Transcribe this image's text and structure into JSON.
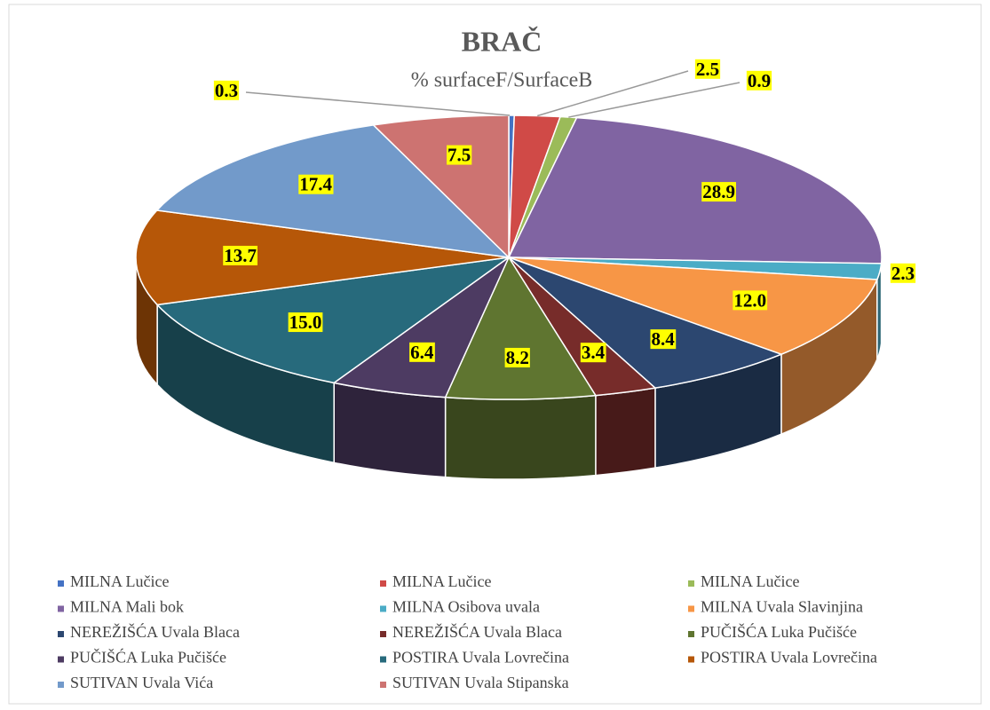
{
  "chart_data": {
    "type": "pie",
    "title": "BRAČ",
    "subtitle": "% surfaceF/SurfaceB",
    "categories": [
      "MILNA Lučice",
      "MILNA Lučice",
      "MILNA Lučice",
      "MILNA Mali bok",
      "MILNA Osibova uvala",
      "MILNA Uvala Slavinjina",
      "NEREŽIŠĆA Uvala Blaca",
      "NEREŽIŠĆA Uvala Blaca",
      "PUČIŠĆA Luka Pučišće",
      "PUČIŠĆA Luka Pučišće",
      "POSTIRA Uvala Lovrečina",
      "POSTIRA Uvala Lovrečina",
      "SUTIVAN Uvala Vića",
      "SUTIVAN Uvala Stipanska"
    ],
    "values": [
      0.3,
      2.5,
      0.9,
      28.9,
      2.3,
      12.0,
      8.4,
      3.4,
      8.2,
      6.4,
      15.0,
      13.7,
      17.4,
      7.5
    ],
    "value_labels": [
      "0.3",
      "2.5",
      "0.9",
      "28.9",
      "2.3",
      "12.0",
      "8.4",
      "3.4",
      "8.2",
      "6.4",
      "15.0",
      "13.7",
      "17.4",
      "7.5"
    ],
    "colors": [
      "#4472c4",
      "#d04a47",
      "#9bbb59",
      "#8064a2",
      "#4bacc6",
      "#f79646",
      "#2c4770",
      "#772c2a",
      "#5f7530",
      "#4d3b62",
      "#276a7c",
      "#b65708",
      "#729aca",
      "#cd7371"
    ],
    "legend": "bottom"
  }
}
